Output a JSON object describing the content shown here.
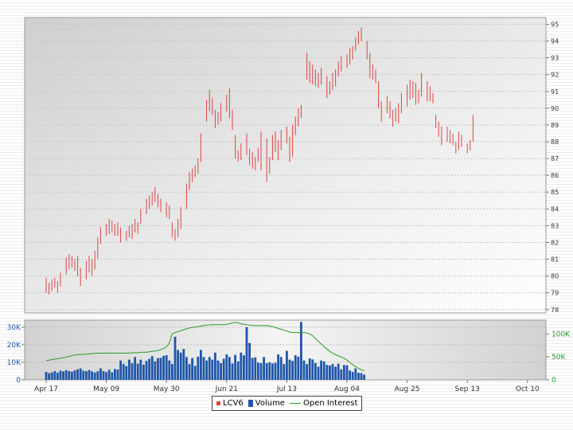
{
  "chart_data": [
    {
      "type": "ohlc",
      "series": [
        {
          "name": "LCV6",
          "color": "#dd4444"
        }
      ],
      "ylim": [
        77.8,
        95.4
      ],
      "y_ticks": [
        "78",
        "79",
        "80",
        "81",
        "82",
        "83",
        "84",
        "85",
        "86",
        "87",
        "88",
        "89",
        "90",
        "91",
        "92",
        "93",
        "94",
        "95"
      ],
      "grid": true,
      "bars": [
        [
          0,
          79.9,
          79.0
        ],
        [
          1,
          79.6,
          78.9
        ],
        [
          2,
          79.8,
          79.1
        ],
        [
          3,
          79.9,
          79.3
        ],
        [
          4,
          79.7,
          79.0
        ],
        [
          5,
          80.2,
          79.4
        ],
        [
          7,
          81.1,
          80.1
        ],
        [
          8,
          81.3,
          80.4
        ],
        [
          9,
          81.2,
          80.5
        ],
        [
          10,
          81.0,
          80.3
        ],
        [
          11,
          81.2,
          80.0
        ],
        [
          12,
          80.5,
          79.4
        ],
        [
          14,
          80.9,
          79.8
        ],
        [
          15,
          81.2,
          80.2
        ],
        [
          16,
          81.0,
          80.0
        ],
        [
          17,
          81.5,
          80.4
        ],
        [
          18,
          82.3,
          81.0
        ],
        [
          19,
          82.9,
          81.9
        ],
        [
          21,
          83.1,
          82.4
        ],
        [
          22,
          83.4,
          82.5
        ],
        [
          23,
          83.3,
          82.6
        ],
        [
          24,
          83.1,
          82.4
        ],
        [
          25,
          83.2,
          82.4
        ],
        [
          26,
          82.9,
          82.0
        ],
        [
          28,
          82.7,
          82.1
        ],
        [
          29,
          83.0,
          82.3
        ],
        [
          30,
          83.1,
          82.2
        ],
        [
          31,
          83.4,
          82.6
        ],
        [
          32,
          83.2,
          82.5
        ],
        [
          33,
          84.0,
          83.1
        ],
        [
          35,
          84.6,
          83.7
        ],
        [
          36,
          84.8,
          84.0
        ],
        [
          37,
          85.0,
          84.2
        ],
        [
          38,
          85.3,
          84.4
        ],
        [
          39,
          84.9,
          84.1
        ],
        [
          40,
          84.6,
          83.8
        ],
        [
          42,
          84.4,
          83.5
        ],
        [
          43,
          84.2,
          83.4
        ],
        [
          44,
          83.2,
          82.3
        ],
        [
          45,
          82.8,
          82.1
        ],
        [
          46,
          83.4,
          82.3
        ],
        [
          47,
          84.1,
          82.8
        ],
        [
          49,
          85.5,
          84.0
        ],
        [
          50,
          86.2,
          85.1
        ],
        [
          51,
          86.4,
          85.6
        ],
        [
          52,
          86.6,
          85.9
        ],
        [
          53,
          87.0,
          86.1
        ],
        [
          54,
          88.5,
          86.8
        ],
        [
          56,
          90.5,
          89.2
        ],
        [
          57,
          91.1,
          89.8
        ],
        [
          58,
          90.6,
          89.6
        ],
        [
          59,
          89.9,
          88.8
        ],
        [
          60,
          89.8,
          89.0
        ],
        [
          61,
          90.3,
          89.2
        ],
        [
          63,
          90.8,
          89.8
        ],
        [
          64,
          91.2,
          89.4
        ],
        [
          65,
          89.9,
          88.7
        ],
        [
          66,
          88.4,
          87.0
        ],
        [
          67,
          87.5,
          86.8
        ],
        [
          68,
          87.9,
          86.9
        ],
        [
          70,
          88.5,
          87.2
        ],
        [
          71,
          87.6,
          86.6
        ],
        [
          72,
          87.4,
          86.4
        ],
        [
          73,
          87.1,
          86.3
        ],
        [
          74,
          87.6,
          86.8
        ],
        [
          75,
          88.6,
          86.3
        ],
        [
          77,
          88.2,
          85.6
        ],
        [
          78,
          87.1,
          86.1
        ],
        [
          79,
          88.4,
          86.9
        ],
        [
          80,
          88.6,
          87.4
        ],
        [
          81,
          88.1,
          86.9
        ],
        [
          82,
          88.7,
          87.5
        ],
        [
          84,
          88.9,
          87.9
        ],
        [
          85,
          88.3,
          86.8
        ],
        [
          86,
          89.0,
          87.1
        ],
        [
          87,
          89.5,
          88.4
        ],
        [
          88,
          90.0,
          88.9
        ],
        [
          89,
          90.2,
          89.4
        ],
        [
          91,
          93.3,
          91.7
        ],
        [
          92,
          92.8,
          91.5
        ],
        [
          93,
          92.6,
          91.4
        ],
        [
          94,
          92.3,
          91.3
        ],
        [
          95,
          92.1,
          91.2
        ],
        [
          96,
          92.4,
          91.4
        ],
        [
          98,
          91.9,
          90.6
        ],
        [
          99,
          91.6,
          90.8
        ],
        [
          100,
          92.1,
          91.1
        ],
        [
          101,
          92.3,
          91.3
        ],
        [
          102,
          92.8,
          91.9
        ],
        [
          103,
          93.1,
          92.2
        ],
        [
          105,
          93.2,
          92.4
        ],
        [
          106,
          93.6,
          92.6
        ],
        [
          107,
          93.7,
          92.9
        ],
        [
          108,
          94.2,
          93.4
        ],
        [
          109,
          94.6,
          93.8
        ],
        [
          110,
          94.8,
          94.0
        ],
        [
          112,
          94.0,
          92.9
        ],
        [
          113,
          93.3,
          91.8
        ],
        [
          114,
          92.6,
          91.7
        ],
        [
          115,
          92.3,
          91.5
        ],
        [
          116,
          91.6,
          90.0
        ],
        [
          117,
          90.4,
          89.2
        ],
        [
          119,
          90.7,
          89.7
        ],
        [
          120,
          90.4,
          89.4
        ],
        [
          121,
          89.9,
          88.9
        ],
        [
          122,
          90.0,
          89.2
        ],
        [
          123,
          90.3,
          89.1
        ],
        [
          124,
          90.9,
          89.7
        ],
        [
          126,
          91.4,
          90.1
        ],
        [
          127,
          91.7,
          90.5
        ],
        [
          128,
          91.6,
          90.6
        ],
        [
          129,
          91.5,
          90.2
        ],
        [
          130,
          91.1,
          90.3
        ],
        [
          131,
          92.1,
          90.7
        ],
        [
          133,
          91.6,
          90.4
        ],
        [
          134,
          91.3,
          90.4
        ],
        [
          135,
          90.9,
          90.3
        ],
        [
          136,
          89.6,
          88.8
        ],
        [
          137,
          89.2,
          88.3
        ],
        [
          138,
          88.9,
          87.8
        ],
        [
          140,
          88.9,
          88.0
        ],
        [
          141,
          88.7,
          87.9
        ],
        [
          142,
          88.5,
          87.8
        ],
        [
          143,
          88.0,
          87.3
        ],
        [
          144,
          88.6,
          87.5
        ],
        [
          145,
          88.4,
          87.7
        ],
        [
          147,
          87.9,
          87.3
        ],
        [
          148,
          88.1,
          87.5
        ],
        [
          149,
          89.6,
          88.0
        ]
      ]
    },
    {
      "type": "bar+line",
      "series": [
        {
          "name": "Volume",
          "color": "#1f56a8"
        },
        {
          "name": "Open Interest",
          "color": "#2a9a2a"
        }
      ],
      "x_ticks": [
        {
          "label": "Apr 17",
          "index": 0
        },
        {
          "label": "May 09",
          "index": 21
        },
        {
          "label": "May 30",
          "index": 42
        },
        {
          "label": "Jun 21",
          "index": 63
        },
        {
          "label": "Jul 13",
          "index": 84
        },
        {
          "label": "Aug 04",
          "index": 105
        },
        {
          "label": "Aug 25",
          "index": 126
        },
        {
          "label": "Sep 13",
          "index": 147
        },
        {
          "label": "Oct 10",
          "index": 168
        }
      ],
      "y_left_ticks": [
        {
          "label": "0",
          "value": 0
        },
        {
          "label": "10K",
          "value": 10000
        },
        {
          "label": "20K",
          "value": 20000
        },
        {
          "label": "30K",
          "value": 30000
        }
      ],
      "y_right_ticks": [
        {
          "label": "0",
          "value": 0
        },
        {
          "label": "50K",
          "value": 50000
        },
        {
          "label": "100K",
          "value": 100000
        }
      ],
      "ylim_volume": [
        0,
        34000
      ],
      "ylim_open_interest": [
        0,
        130000
      ],
      "volume": [
        4500,
        3800,
        4200,
        5000,
        4000,
        5200,
        4800,
        5500,
        5000,
        4600,
        5400,
        6000,
        6500,
        5200,
        4900,
        5600,
        4800,
        4200,
        4900,
        6500,
        5000,
        4400,
        5700,
        4300,
        6200,
        5900,
        11000,
        9000,
        7800,
        11500,
        9500,
        13000,
        9200,
        11500,
        8600,
        10800,
        12000,
        13500,
        10500,
        12400,
        12500,
        13700,
        14000,
        11000,
        9000,
        24500,
        17000,
        15500,
        17600,
        13000,
        9000,
        12400,
        8000,
        13200,
        17000,
        13000,
        11000,
        13000,
        11500,
        15500,
        11000,
        9500,
        12000,
        14500,
        13000,
        9300,
        14200,
        10500,
        15500,
        14000,
        30000,
        21000,
        12500,
        12800,
        9800,
        9500,
        13000,
        9500,
        10000,
        9300,
        9700,
        14500,
        13000,
        9000,
        16500,
        11500,
        10800,
        14000,
        13200,
        33000,
        11000,
        9000,
        12200,
        11600,
        9600,
        7500,
        11000,
        10500,
        8500,
        8200,
        9000,
        7500,
        9200,
        6000,
        8500,
        8300,
        5300,
        4500,
        6500,
        4000,
        3800,
        3000
      ],
      "open_interest": [
        42000,
        43000,
        44000,
        45000,
        46000,
        47000,
        48000,
        49500,
        51000,
        52500,
        54000,
        55000,
        55000,
        55500,
        56000,
        56500,
        57000,
        57500,
        58000,
        58000,
        58000,
        58000,
        58000,
        58000,
        58000,
        58000,
        58000,
        58000,
        58000,
        58000,
        59000,
        59000,
        59000,
        60000,
        60000,
        60000,
        61000,
        62000,
        63000,
        64000,
        66000,
        68000,
        72000,
        80000,
        100000,
        103000,
        105000,
        107000,
        109000,
        111000,
        113000,
        114000,
        115000,
        116000,
        117000,
        118000,
        119000,
        119500,
        120000,
        120000,
        120000,
        120000,
        120000,
        121000,
        122000,
        124000,
        125000,
        124000,
        122000,
        121000,
        120000,
        119000,
        118500,
        118000,
        118000,
        118000,
        118000,
        118000,
        117000,
        116000,
        114000,
        112000,
        110000,
        108000,
        106000,
        104000,
        103000,
        103000,
        103000,
        103000,
        103000,
        102000,
        100000,
        96000,
        90000,
        84000,
        78000,
        72000,
        67000,
        62000,
        58000,
        55000,
        52000,
        50000,
        47000,
        43000,
        38000,
        33000,
        29000,
        25000,
        22000,
        20000
      ]
    }
  ],
  "legend": {
    "price_label": "LCV6",
    "volume_label": "Volume",
    "oi_label": "Open Interest"
  }
}
